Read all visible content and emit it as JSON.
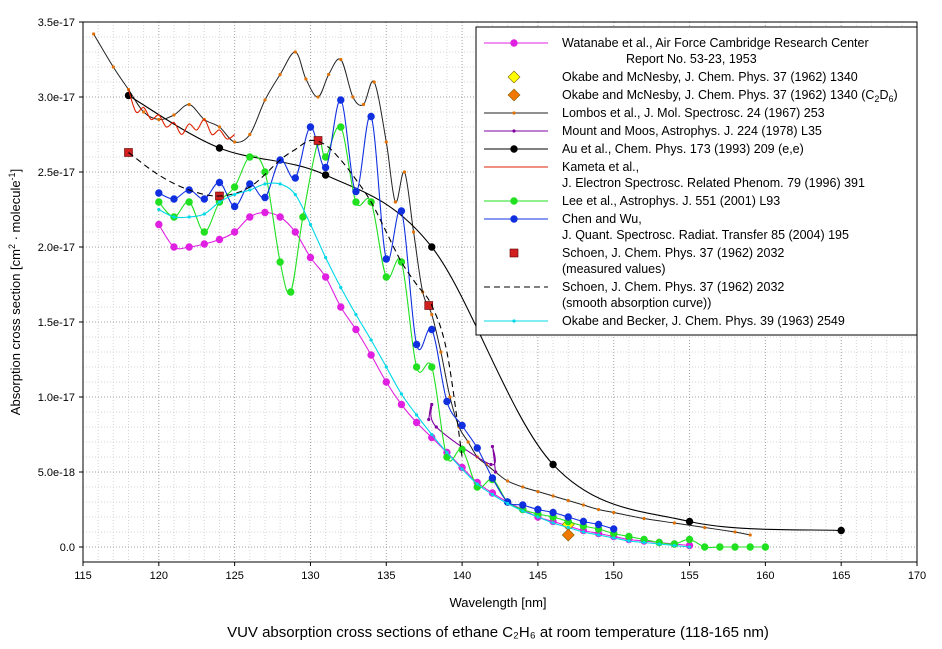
{
  "chart_data": {
    "type": "line",
    "title": "VUV absorption cross sections of ethane C₂H₆ at room temperature (118-165 nm)",
    "xlabel": "Wavelength [nm]",
    "ylabel_main": "Absorption cross section [cm",
    "ylabel_sup1": "2",
    "ylabel_mid": " · molecule",
    "ylabel_sup2": "-1",
    "ylabel_end": "]",
    "xlim": [
      115,
      170
    ],
    "ylim": [
      -1e-18,
      3.5e-17
    ],
    "xticks": [
      115,
      120,
      125,
      130,
      135,
      140,
      145,
      150,
      155,
      160,
      165,
      170
    ],
    "yticks": [
      {
        "v": 0,
        "label": "0.0"
      },
      {
        "v": 5e-18,
        "label": "5.0e-18"
      },
      {
        "v": 1e-17,
        "label": "1.0e-17"
      },
      {
        "v": 1.5e-17,
        "label": "1.5e-17"
      },
      {
        "v": 2e-17,
        "label": "2.0e-17"
      },
      {
        "v": 2.5e-17,
        "label": "2.5e-17"
      },
      {
        "v": 3e-17,
        "label": "3.0e-17"
      },
      {
        "v": 3.5e-17,
        "label": "3.5e-17"
      }
    ],
    "legend_position": "top-right",
    "series": [
      {
        "name": "Watanabe et al., Air Force Cambridge Research Center",
        "name2": "Report No. 53-23, 1953",
        "color": "#e020e0",
        "marker": "dot",
        "line": "solid",
        "x": [
          120,
          121,
          122,
          123,
          124,
          125,
          126,
          127,
          128,
          129,
          130,
          131,
          132,
          133,
          134,
          135,
          136,
          137,
          138,
          139,
          140,
          141,
          142,
          143,
          144,
          145,
          146,
          147,
          148,
          149,
          150,
          151,
          152,
          153,
          154,
          155
        ],
        "y": [
          2.15e-17,
          2e-17,
          2e-17,
          2.02e-17,
          2.05e-17,
          2.1e-17,
          2.2e-17,
          2.23e-17,
          2.2e-17,
          2.1e-17,
          1.93e-17,
          1.8e-17,
          1.6e-17,
          1.45e-17,
          1.28e-17,
          1.1e-17,
          9.5e-18,
          8.3e-18,
          7.3e-18,
          6.3e-18,
          5.3e-18,
          4.3e-18,
          3.6e-18,
          3e-18,
          2.5e-18,
          2e-18,
          1.7e-18,
          1.4e-18,
          1.1e-18,
          9e-19,
          7e-19,
          5e-19,
          4e-19,
          3e-19,
          2e-19,
          1e-19
        ]
      },
      {
        "name": "Okabe and McNesby, J. Chem. Phys. 37 (1962) 1340",
        "color": "#ffff00",
        "marker": "diamond",
        "line": "none",
        "x": [
          147
        ],
        "y": [
          1.5e-18
        ]
      },
      {
        "name": "Okabe and McNesby, J. Chem. Phys. 37 (1962) 1340 (C",
        "name_sub1": "2",
        "name_mid": "D",
        "name_sub2": "6",
        "name_end": ")",
        "color": "#f07800",
        "marker": "diamond",
        "line": "none",
        "x": [
          147
        ],
        "y": [
          8e-19
        ]
      },
      {
        "name": "Lombos et al., J. Mol. Spectrosc. 24 (1967) 253",
        "color": "#e07000",
        "marker": "smalldot",
        "line": "solid",
        "dark": true,
        "x": [
          115.7,
          117,
          118,
          119,
          120,
          121,
          122,
          123,
          124,
          125,
          126,
          127,
          128,
          129,
          129.7,
          130.5,
          131.2,
          132,
          132.8,
          133.5,
          134.2,
          135,
          135.6,
          136.2,
          136.8,
          137.4,
          138,
          138.6,
          139.2,
          139.8,
          140.4,
          141,
          141.6,
          142.2,
          143,
          144,
          145,
          146,
          147,
          148,
          149,
          150,
          152,
          154,
          156,
          158,
          159
        ],
        "y": [
          3.42e-17,
          3.2e-17,
          3.05e-17,
          2.9e-17,
          2.85e-17,
          2.88e-17,
          2.95e-17,
          2.85e-17,
          2.8e-17,
          2.7e-17,
          2.75e-17,
          2.98e-17,
          3.15e-17,
          3.3e-17,
          3.12e-17,
          3e-17,
          3.15e-17,
          3.25e-17,
          3e-17,
          2.95e-17,
          3.1e-17,
          2.7e-17,
          2.3e-17,
          2.5e-17,
          2.1e-17,
          1.7e-17,
          1.55e-17,
          1.3e-17,
          1e-17,
          8e-18,
          7e-18,
          6e-18,
          5.5e-18,
          5e-18,
          4.4e-18,
          4e-18,
          3.7e-18,
          3.4e-18,
          3.1e-18,
          2.8e-18,
          2.5e-18,
          2.3e-18,
          1.9e-18,
          1.6e-18,
          1.3e-18,
          1e-18,
          8e-19
        ]
      },
      {
        "name": "Mount and Moos, Astrophys. J. 224 (1978) L35",
        "color": "#8000a0",
        "marker": "smalldot",
        "line": "solid",
        "x": [
          137.8,
          138,
          138.3,
          141.9,
          142,
          142.2
        ],
        "y": [
          8.5e-18,
          9.5e-18,
          8e-18,
          5.5e-18,
          6.7e-18,
          5e-18
        ]
      },
      {
        "name": "Au et al., Chem. Phys. 173 (1993) 209 (e,e)",
        "color": "#000000",
        "marker": "dot",
        "line": "solid",
        "x": [
          118,
          124,
          131,
          138,
          146,
          155,
          165
        ],
        "y": [
          3.01e-17,
          2.66e-17,
          2.48e-17,
          2e-17,
          5.5e-18,
          1.7e-18,
          1.1e-18
        ]
      },
      {
        "name": "Kameta et al.,",
        "name2": "J. Electron Spectrosc. Related Phenom. 79 (1996) 391",
        "color": "#e02000",
        "marker": "none",
        "line": "solid",
        "x": [
          118,
          118.5,
          119,
          119.5,
          120,
          120.5,
          121,
          121.5,
          122,
          122.5,
          123,
          123.5,
          124,
          124.5,
          125
        ],
        "y": [
          3.05e-17,
          2.9e-17,
          2.93e-17,
          2.85e-17,
          2.88e-17,
          2.8e-17,
          2.83e-17,
          2.75e-17,
          2.82e-17,
          2.78e-17,
          2.85e-17,
          2.75e-17,
          2.78e-17,
          2.72e-17,
          2.75e-17
        ]
      },
      {
        "name": "Lee et al., Astrophys. J. 551 (2001) L93",
        "color": "#20e020",
        "marker": "dot",
        "line": "solid",
        "x": [
          120,
          121,
          122,
          123,
          124,
          125,
          126,
          127,
          128,
          128.7,
          129.5,
          130.5,
          131,
          132,
          133,
          134,
          135,
          136,
          137,
          138,
          139,
          140,
          141,
          142,
          143,
          144,
          145,
          146,
          147,
          148,
          149,
          150,
          151,
          152,
          153,
          154,
          155,
          156,
          157,
          158,
          159,
          160
        ],
        "y": [
          2.3e-17,
          2.2e-17,
          2.3e-17,
          2.1e-17,
          2.3e-17,
          2.4e-17,
          2.6e-17,
          2.5e-17,
          1.9e-17,
          1.7e-17,
          2.2e-17,
          2.7e-17,
          2.6e-17,
          2.8e-17,
          2.3e-17,
          2.3e-17,
          1.8e-17,
          1.9e-17,
          1.2e-17,
          1.2e-17,
          6e-18,
          6.5e-18,
          4e-18,
          4.5e-18,
          3e-18,
          2.5e-18,
          2.2e-18,
          2e-18,
          1.7e-18,
          1.4e-18,
          1.2e-18,
          9e-19,
          7e-19,
          5e-19,
          3e-19,
          2e-19,
          5e-19,
          0,
          0,
          0,
          0,
          0
        ]
      },
      {
        "name": "Chen and Wu,",
        "name2": "J. Quant. Spectrosc. Radiat. Transfer 85 (2004) 195",
        "color": "#1030e0",
        "marker": "dot",
        "line": "solid",
        "x": [
          120,
          121,
          122,
          123,
          124,
          125,
          126,
          127,
          128,
          129,
          130,
          131,
          132,
          133,
          134,
          135,
          136,
          137,
          138,
          139,
          140,
          141,
          142,
          143,
          144,
          145,
          146,
          147,
          148,
          149,
          150
        ],
        "y": [
          2.36e-17,
          2.32e-17,
          2.38e-17,
          2.32e-17,
          2.43e-17,
          2.27e-17,
          2.42e-17,
          2.33e-17,
          2.58e-17,
          2.46e-17,
          2.8e-17,
          2.53e-17,
          2.98e-17,
          2.37e-17,
          2.87e-17,
          1.92e-17,
          2.24e-17,
          1.35e-17,
          1.45e-17,
          9.7e-18,
          8.1e-18,
          6.6e-18,
          4.6e-18,
          3e-18,
          2.8e-18,
          2.5e-18,
          2.3e-18,
          2e-18,
          1.7e-18,
          1.5e-18,
          1.2e-18
        ]
      },
      {
        "name": "Schoen, J. Chem. Phys. 37 (1962) 2032",
        "name2": "(measured values)",
        "color": "#d02020",
        "marker": "square",
        "line": "none",
        "x": [
          118,
          124,
          130.5,
          137.8
        ],
        "y": [
          2.63e-17,
          2.34e-17,
          2.71e-17,
          1.61e-17
        ]
      },
      {
        "name": "Schoen, J. Chem. Phys. 37 (1962) 2032",
        "name2": "(smooth absorption curve))",
        "color": "#000000",
        "marker": "none",
        "line": "dash",
        "x": [
          118,
          120,
          122,
          124,
          126,
          128,
          129,
          130,
          131,
          132,
          133,
          134,
          135,
          136,
          137,
          138,
          139,
          140
        ],
        "y": [
          2.63e-17,
          2.48e-17,
          2.38e-17,
          2.34e-17,
          2.4e-17,
          2.58e-17,
          2.65e-17,
          2.71e-17,
          2.68e-17,
          2.58e-17,
          2.45e-17,
          2.3e-17,
          2.1e-17,
          1.9e-17,
          1.75e-17,
          1.61e-17,
          1.3e-17,
          6e-18
        ]
      },
      {
        "name": "Okabe and Becker, J. Chem. Phys. 39 (1963) 2549",
        "color": "#00d8e8",
        "marker": "smalldot",
        "line": "solid",
        "x": [
          120,
          121,
          122,
          123,
          124,
          125,
          126,
          127,
          128,
          129,
          130,
          131,
          132,
          133,
          134,
          135,
          136,
          137,
          138,
          139,
          140,
          141,
          142,
          143,
          144,
          145,
          146,
          147,
          148,
          149,
          150,
          151,
          152,
          153,
          154,
          155
        ],
        "y": [
          2.25e-17,
          2.2e-17,
          2.2e-17,
          2.22e-17,
          2.3e-17,
          2.35e-17,
          2.38e-17,
          2.42e-17,
          2.42e-17,
          2.35e-17,
          2.15e-17,
          1.93e-17,
          1.73e-17,
          1.55e-17,
          1.38e-17,
          1.2e-17,
          1.02e-17,
          8.8e-18,
          7.5e-18,
          6.3e-18,
          5.2e-18,
          4.2e-18,
          3.5e-18,
          2.9e-18,
          2.4e-18,
          2e-18,
          1.6e-18,
          1.3e-18,
          1e-18,
          8e-19,
          6e-19,
          4e-19,
          3e-19,
          2e-19,
          1e-19,
          0
        ]
      }
    ]
  }
}
